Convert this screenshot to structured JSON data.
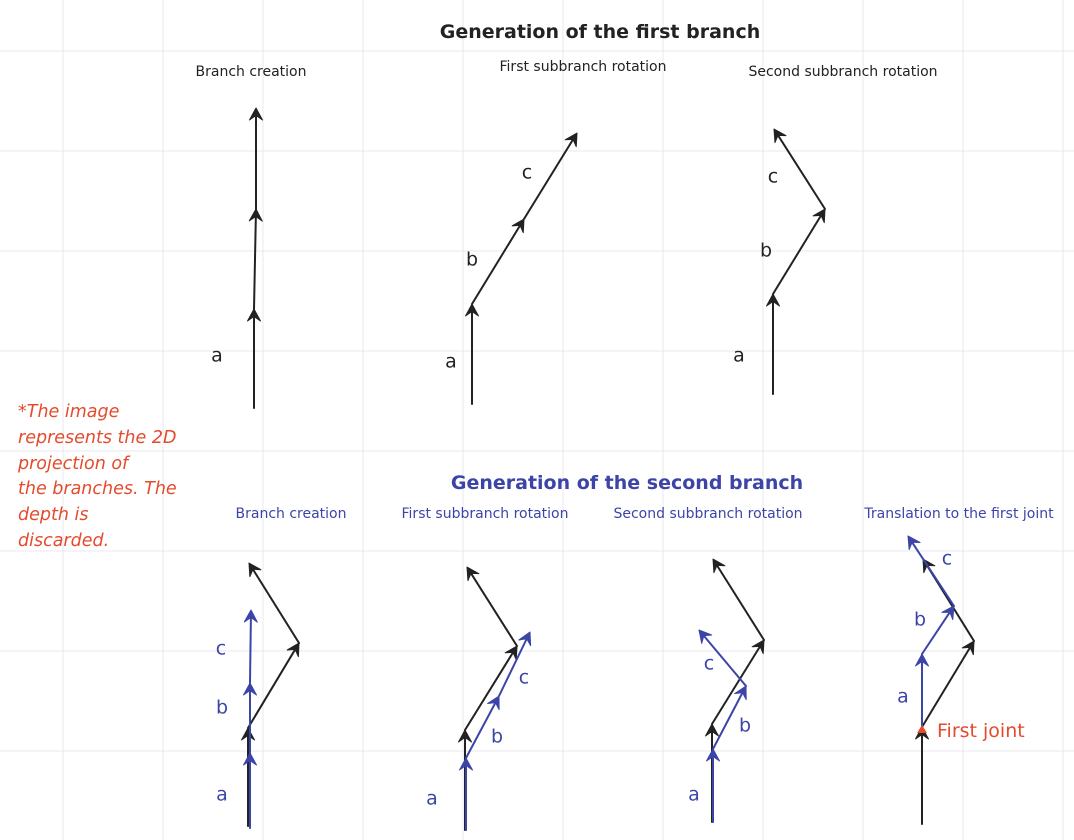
{
  "colors": {
    "background": "#ffffff",
    "grid": "#e9e9ec",
    "first_branch": "#222222",
    "second_branch": "#3d44a8",
    "note": "#e44b2d",
    "joint": "#e44b2d"
  },
  "section1": {
    "title": "Generation of the first branch",
    "panels": [
      {
        "subtitle": "Branch creation",
        "labels": {
          "a": "a"
        }
      },
      {
        "subtitle": "First subbranch rotation",
        "labels": {
          "a": "a",
          "b": "b",
          "c": "c"
        }
      },
      {
        "subtitle": "Second subbranch rotation",
        "labels": {
          "a": "a",
          "b": "b",
          "c": "c"
        }
      }
    ]
  },
  "section2": {
    "title": "Generation of the second branch",
    "panels": [
      {
        "subtitle": "Branch creation",
        "labels": {
          "a": "a",
          "b": "b",
          "c": "c"
        }
      },
      {
        "subtitle": "First subbranch rotation",
        "labels": {
          "a": "a",
          "b": "b",
          "c": "c"
        }
      },
      {
        "subtitle": "Second subbranch rotation",
        "labels": {
          "a": "a",
          "b": "b",
          "c": "c"
        }
      },
      {
        "subtitle": "Translation to the first joint",
        "labels": {
          "a": "a",
          "b": "b",
          "c": "c"
        }
      }
    ]
  },
  "note": {
    "line1": "*The image",
    "line2": "represents the 2D",
    "line3": "projection of",
    "line4": "the branches. The",
    "line5": "depth is discarded."
  },
  "joint_label": "First joint"
}
